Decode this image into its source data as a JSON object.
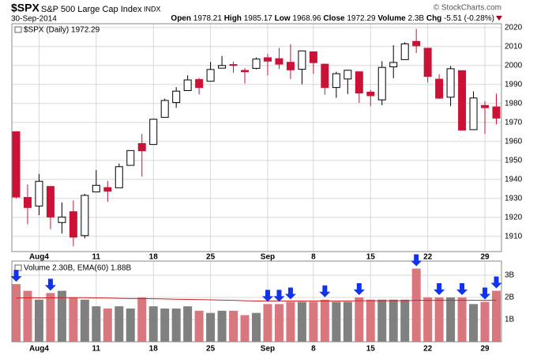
{
  "header": {
    "symbol": "$SPX",
    "name": "S&P 500 Large Cap Index",
    "exchange": "INDX",
    "date": "30-Sep-2014",
    "copyright": "© StockCharts.com",
    "open_label": "Open",
    "open": "1978.21",
    "high_label": "High",
    "high": "1985.17",
    "low_label": "Low",
    "low": "1968.96",
    "close_label": "Close",
    "close": "1972.29",
    "volume_label": "Volume",
    "volume": "2.3B",
    "chg_label": "Chg",
    "chg": "-5.51 (-0.28%)"
  },
  "chart_data": {
    "type": "candlestick",
    "legend": "$SPX (Daily) 1972.29",
    "categories": [
      null,
      null,
      "Aug4",
      null,
      null,
      null,
      null,
      "11",
      null,
      null,
      null,
      null,
      "18",
      null,
      null,
      null,
      null,
      "25",
      null,
      null,
      null,
      null,
      "Sep",
      null,
      null,
      null,
      "8",
      null,
      null,
      null,
      null,
      "15",
      null,
      null,
      null,
      null,
      "22",
      null,
      null,
      null,
      null,
      "29",
      null
    ],
    "open": [
      1965.1,
      1930.5,
      1926.0,
      1936.3,
      1917.3,
      1923.0,
      1910.4,
      1933.4,
      1935.7,
      1935.6,
      1947.4,
      1958.9,
      1958.4,
      1972.7,
      1980.5,
      1986.8,
      1992.6,
      1991.7,
      1998.6,
      2000.5,
      1997.4,
      1998.5,
      2004.1,
      2003.6,
      2001.7,
      1998.0,
      2007.2,
      2000.7,
      1988.4,
      1992.9,
      1996.7,
      1986.0,
      1981.9,
      1999.3,
      2003.1,
      2012.7,
      2009.1,
      1992.8,
      1983.3,
      1997.3,
      1966.2,
      1978.96,
      1978.21
    ],
    "high": [
      1965.1,
      1937.4,
      1942.9,
      1936.3,
      1927.9,
      1928.9,
      1932.4,
      1944.9,
      1939.2,
      1948.4,
      1955.2,
      1964.0,
      1972.0,
      1982.6,
      1988.6,
      1994.8,
      1993.5,
      2001.9,
      2005.0,
      2002.1,
      1998.6,
      2004.3,
      2006.1,
      2009.3,
      2011.2,
      2007.7,
      2007.2,
      2001.0,
      1996.7,
      1997.7,
      1996.7,
      1987.2,
      2002.3,
      2010.7,
      2012.3,
      2019.3,
      2009.1,
      1995.4,
      1999.8,
      1997.3,
      1986.4,
      1981.3,
      1985.17
    ],
    "low": [
      1930.0,
      1916.4,
      1921.2,
      1913.8,
      1911.5,
      1904.8,
      1909.0,
      1933.4,
      1928.3,
      1935.6,
      1947.4,
      1941.5,
      1958.4,
      1972.7,
      1977.7,
      1986.8,
      1984.8,
      1991.7,
      1998.6,
      1996.2,
      1990.5,
      1998.0,
      1994.9,
      1998.1,
      1992.9,
      1990.1,
      1995.6,
      1984.6,
      1983.0,
      1985.0,
      1980.3,
      1978.5,
      1979.1,
      1993.3,
      2003.1,
      2006.6,
      1991.0,
      1982.4,
      1978.6,
      1966.0,
      1966.2,
      1964.0,
      1968.96
    ],
    "close": [
      1930.7,
      1925.2,
      1939.0,
      1920.2,
      1920.2,
      1909.6,
      1931.6,
      1936.9,
      1933.8,
      1946.7,
      1955.2,
      1955.1,
      1971.7,
      1981.6,
      1986.5,
      1992.4,
      1988.4,
      1997.9,
      2000.0,
      2000.1,
      1996.7,
      2003.4,
      2002.3,
      2000.7,
      1997.7,
      2007.7,
      2001.5,
      1988.4,
      1995.7,
      1997.5,
      1985.5,
      1984.1,
      1999.0,
      2001.6,
      2011.4,
      2010.4,
      1994.3,
      1982.8,
      1998.3,
      1966.0,
      1982.9,
      1977.8,
      1972.29
    ],
    "up_color": "#ffffff",
    "down_color": "#cc1137",
    "ylim": [
      1902,
      2022
    ],
    "yticks": [
      1910,
      1920,
      1930,
      1940,
      1950,
      1960,
      1970,
      1980,
      1990,
      2000,
      2010,
      2020
    ],
    "grid": true,
    "volume": {
      "legend": "Volume 2.30B, EMA(60) 1.88B",
      "values": [
        2.6,
        2.3,
        1.9,
        2.2,
        2.3,
        2.0,
        1.9,
        1.6,
        1.5,
        1.6,
        1.5,
        2.0,
        1.6,
        1.5,
        1.5,
        1.6,
        1.4,
        1.3,
        1.4,
        1.4,
        1.2,
        1.3,
        1.7,
        1.7,
        1.8,
        1.8,
        1.8,
        1.9,
        1.8,
        1.8,
        2.0,
        1.9,
        1.9,
        1.9,
        1.9,
        3.3,
        2.0,
        2.0,
        2.0,
        2.0,
        1.7,
        1.8,
        2.3
      ],
      "ema": [
        1.97,
        1.98,
        1.98,
        1.98,
        1.99,
        1.99,
        1.99,
        1.98,
        1.97,
        1.96,
        1.95,
        1.95,
        1.94,
        1.93,
        1.92,
        1.91,
        1.9,
        1.89,
        1.88,
        1.87,
        1.85,
        1.84,
        1.84,
        1.84,
        1.84,
        1.84,
        1.84,
        1.84,
        1.84,
        1.84,
        1.85,
        1.85,
        1.85,
        1.85,
        1.85,
        1.87,
        1.87,
        1.87,
        1.87,
        1.87,
        1.87,
        1.87,
        1.88
      ],
      "up_color": "#808080",
      "down_color": "#d9777f",
      "ema_color": "#cc2222",
      "marker_color": "#1133ee",
      "markers": [
        0,
        3,
        22,
        23,
        24,
        27,
        30,
        35,
        37,
        39,
        41,
        42
      ],
      "ylim": [
        0,
        3.64
      ],
      "yticks": [
        {
          "value": 1,
          "label": "1B"
        },
        {
          "value": 2,
          "label": "2B"
        },
        {
          "value": 3,
          "label": "3B"
        }
      ]
    }
  }
}
